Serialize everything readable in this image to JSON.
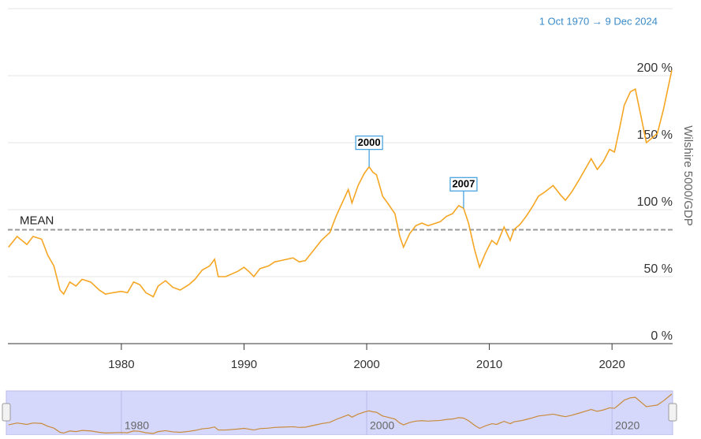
{
  "chart_data": {
    "type": "line",
    "subtitle": "1 Oct 1970 → 9 Dec 2024",
    "y_axis_label": "Wilshire 5000/GDP",
    "x": [
      1970.8,
      1971.5,
      1972.3,
      1972.8,
      1973.5,
      1974.0,
      1974.5,
      1975.0,
      1975.3,
      1975.8,
      1976.3,
      1976.8,
      1977.5,
      1978.2,
      1978.7,
      1979.3,
      1980.0,
      1980.5,
      1981.0,
      1981.5,
      1982.0,
      1982.6,
      1983.0,
      1983.6,
      1984.2,
      1984.8,
      1985.5,
      1986.0,
      1986.6,
      1987.2,
      1987.6,
      1987.9,
      1988.5,
      1989.5,
      1990.0,
      1990.5,
      1990.8,
      1991.3,
      1992.0,
      1992.5,
      1993.0,
      1994.0,
      1994.5,
      1995.0,
      1995.7,
      1996.3,
      1997.0,
      1997.5,
      1998.0,
      1998.5,
      1998.8,
      1999.3,
      1999.8,
      2000.2,
      2000.5,
      2000.8,
      2001.3,
      2001.7,
      2002.3,
      2002.7,
      2003.0,
      2003.5,
      2004.0,
      2004.5,
      2005.0,
      2006.0,
      2006.5,
      2007.0,
      2007.5,
      2007.9,
      2008.3,
      2008.8,
      2009.2,
      2009.7,
      2010.2,
      2010.6,
      2011.2,
      2011.7,
      2012.0,
      2012.5,
      2013.0,
      2013.5,
      2014.0,
      2014.5,
      2015.2,
      2015.8,
      2016.2,
      2016.7,
      2017.3,
      2017.8,
      2018.3,
      2018.8,
      2019.3,
      2019.8,
      2020.2,
      2020.6,
      2021.0,
      2021.5,
      2021.9,
      2022.4,
      2022.8,
      2023.2,
      2023.7,
      2024.2,
      2024.87
    ],
    "series": [
      {
        "name": "Wilshire 5000/GDP",
        "color": "#f5a623",
        "values": [
          72,
          80,
          74,
          80,
          78,
          66,
          58,
          40,
          37,
          46,
          43,
          48,
          46,
          40,
          37,
          38,
          39,
          38,
          46,
          44,
          38,
          35,
          43,
          47,
          42,
          40,
          44,
          48,
          55,
          58,
          63,
          50,
          50,
          54,
          57,
          53,
          50,
          56,
          58,
          61,
          62,
          64,
          61,
          62,
          70,
          77,
          83,
          95,
          105,
          115,
          105,
          118,
          127,
          132,
          128,
          126,
          110,
          105,
          97,
          80,
          72,
          82,
          88,
          90,
          88,
          91,
          95,
          97,
          103,
          101,
          90,
          70,
          57,
          68,
          77,
          74,
          87,
          77,
          85,
          89,
          95,
          102,
          110,
          113,
          118,
          111,
          107,
          113,
          122,
          130,
          138,
          130,
          136,
          145,
          143,
          160,
          178,
          188,
          190,
          168,
          150,
          153,
          157,
          175,
          204
        ]
      }
    ],
    "xlim": [
      1970.75,
      2024.94
    ],
    "xticks": [
      1980,
      1990,
      2000,
      2010,
      2020
    ],
    "ylim": [
      0,
      250
    ],
    "yticks": [
      {
        "value": 0,
        "label": "0 %"
      },
      {
        "value": 50,
        "label": "50 %"
      },
      {
        "value": 100,
        "label": "100 %"
      },
      {
        "value": 150,
        "label": "150 %"
      },
      {
        "value": 200,
        "label": "200 %"
      }
    ],
    "grid": true,
    "mean": 85,
    "mean_label": "MEAN",
    "annotations": [
      {
        "label": "2000",
        "x": 2000.2,
        "y": 132
      },
      {
        "label": "2007",
        "x": 2007.9,
        "y": 101
      }
    ],
    "navigator_xticks": [
      1980,
      2000,
      2020
    ]
  }
}
